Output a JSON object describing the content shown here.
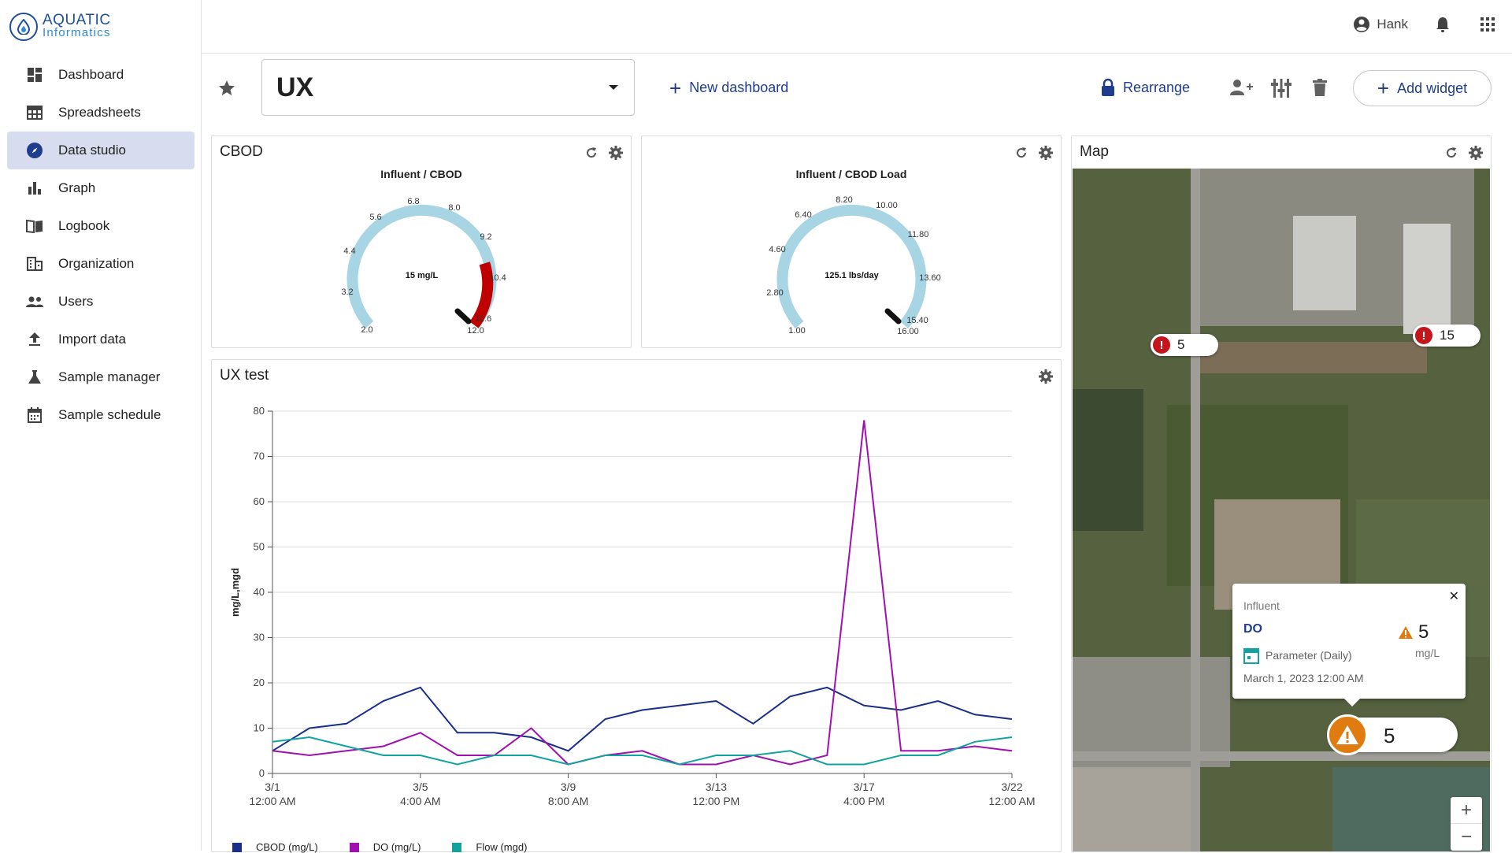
{
  "brand": {
    "line1": "AQUATIC",
    "line2": "Informatics"
  },
  "nav": [
    {
      "label": "Dashboard",
      "icon": "dashboard-icon",
      "active": false
    },
    {
      "label": "Spreadsheets",
      "icon": "table-icon",
      "active": false
    },
    {
      "label": "Data studio",
      "icon": "compass-icon",
      "active": true
    },
    {
      "label": "Graph",
      "icon": "bar-chart-icon",
      "active": false
    },
    {
      "label": "Logbook",
      "icon": "book-icon",
      "active": false
    },
    {
      "label": "Organization",
      "icon": "building-icon",
      "active": false
    },
    {
      "label": "Users",
      "icon": "people-icon",
      "active": false
    },
    {
      "label": "Import data",
      "icon": "upload-icon",
      "active": false
    },
    {
      "label": "Sample manager",
      "icon": "flask-icon",
      "active": false
    },
    {
      "label": "Sample schedule",
      "icon": "calendar-icon",
      "active": false
    }
  ],
  "topbar": {
    "user_name": "Hank"
  },
  "toolbar": {
    "dashboard_name": "UX",
    "new_dashboard": "New dashboard",
    "rearrange": "Rearrange",
    "add_widget": "Add widget"
  },
  "widgets": {
    "gauge1": {
      "title": "CBOD",
      "gauge_title": "Influent / CBOD",
      "value_label": "15 mg/L",
      "ticks": [
        "2.0",
        "3.2",
        "4.4",
        "5.6",
        "6.8",
        "8.0",
        "9.2",
        "10.4",
        "11.6",
        "12.0"
      ],
      "min": 2.0,
      "max": 12.0,
      "value": 15,
      "red_from": 10.0
    },
    "gauge2": {
      "title": "",
      "gauge_title": "Influent / CBOD Load",
      "value_label": "125.1 lbs/day",
      "ticks": [
        "1.00",
        "2.80",
        "4.60",
        "6.40",
        "8.20",
        "10.00",
        "11.80",
        "13.60",
        "15.40",
        "16.00"
      ],
      "min": 1.0,
      "max": 16.0,
      "value": 125.1
    },
    "map": {
      "title": "Map",
      "pins": [
        {
          "value": "5"
        },
        {
          "value": "15"
        }
      ],
      "popup": {
        "location": "Influent",
        "parameter": "DO",
        "type": "Parameter (Daily)",
        "timestamp": "March 1, 2023 12:00 AM",
        "value": "5",
        "unit": "mg/L"
      },
      "active_pin_value": "5",
      "zoom_in": "+",
      "zoom_out": "−"
    },
    "chart": {
      "title": "UX test"
    }
  },
  "colors": {
    "accent": "#1f3c8e",
    "gauge_blue": "#a8d5e4",
    "gauge_red": "#c00000",
    "alarm_red": "#c4161c",
    "warning_orange": "#e07b10"
  },
  "chart_data": {
    "type": "line",
    "ylabel": "mg/L,mgd",
    "ylim": [
      0,
      80
    ],
    "yticks": [
      "0",
      "10",
      "20",
      "30",
      "40",
      "50",
      "60",
      "70",
      "80"
    ],
    "xticks": [
      {
        "l1": "3/1",
        "l2": "12:00 AM"
      },
      {
        "l1": "3/5",
        "l2": "4:00 AM"
      },
      {
        "l1": "3/9",
        "l2": "8:00 AM"
      },
      {
        "l1": "3/13",
        "l2": "12:00 PM"
      },
      {
        "l1": "3/17",
        "l2": "4:00 PM"
      },
      {
        "l1": "3/22",
        "l2": "12:00 AM"
      }
    ],
    "x": [
      "3/1",
      "3/2",
      "3/3",
      "3/4",
      "3/5",
      "3/6",
      "3/7",
      "3/8",
      "3/9",
      "3/10",
      "3/11",
      "3/12",
      "3/13",
      "3/14",
      "3/15",
      "3/16",
      "3/17",
      "3/18",
      "3/19",
      "3/20",
      "3/21"
    ],
    "series": [
      {
        "name": "CBOD (mg/L)",
        "color": "#1a2f8c",
        "values": [
          5,
          10,
          11,
          16,
          19,
          9,
          9,
          8,
          5,
          12,
          14,
          15,
          16,
          11,
          17,
          19,
          15,
          14,
          16,
          13,
          12
        ]
      },
      {
        "name": "DO (mg/L)",
        "color": "#a010b0",
        "values": [
          5,
          4,
          5,
          6,
          9,
          4,
          4,
          10,
          2,
          4,
          5,
          2,
          2,
          4,
          2,
          4,
          78,
          5,
          5,
          6,
          5
        ]
      },
      {
        "name": "Flow (mgd)",
        "color": "#12a3a0",
        "values": [
          7,
          8,
          6,
          4,
          4,
          2,
          4,
          4,
          2,
          4,
          4,
          2,
          4,
          4,
          5,
          2,
          2,
          4,
          4,
          7,
          8
        ]
      }
    ]
  }
}
